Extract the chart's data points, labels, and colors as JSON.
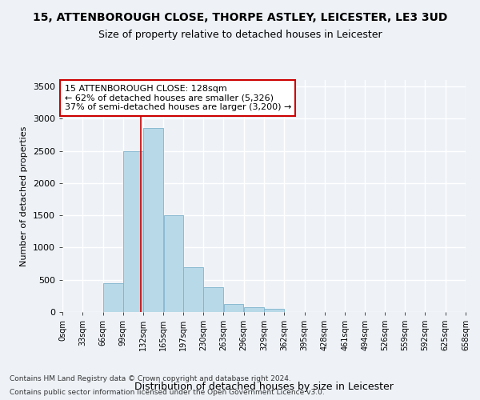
{
  "title_line1": "15, ATTENBOROUGH CLOSE, THORPE ASTLEY, LEICESTER, LE3 3UD",
  "title_line2": "Size of property relative to detached houses in Leicester",
  "xlabel": "Distribution of detached houses by size in Leicester",
  "ylabel": "Number of detached properties",
  "bin_edges": [
    0,
    33,
    66,
    99,
    132,
    165,
    197,
    230,
    263,
    296,
    329,
    362,
    395,
    428,
    461,
    494,
    526,
    559,
    592,
    625,
    658
  ],
  "bin_labels": [
    "0sqm",
    "33sqm",
    "66sqm",
    "99sqm",
    "132sqm",
    "165sqm",
    "197sqm",
    "230sqm",
    "263sqm",
    "296sqm",
    "329sqm",
    "362sqm",
    "395sqm",
    "428sqm",
    "461sqm",
    "494sqm",
    "526sqm",
    "559sqm",
    "592sqm",
    "625sqm",
    "658sqm"
  ],
  "bar_heights": [
    0,
    5,
    450,
    2500,
    2850,
    1500,
    700,
    380,
    130,
    80,
    50,
    5,
    5,
    0,
    0,
    0,
    0,
    0,
    0,
    0
  ],
  "bar_color": "#b8d9e8",
  "bar_edge_color": "#7fb3cc",
  "property_value": 128,
  "property_line_color": "#cc0000",
  "annotation_line1": "15 ATTENBOROUGH CLOSE: 128sqm",
  "annotation_line2": "← 62% of detached houses are smaller (5,326)",
  "annotation_line3": "37% of semi-detached houses are larger (3,200) →",
  "annotation_box_color": "#ffffff",
  "annotation_box_edge_color": "#cc0000",
  "ylim": [
    0,
    3600
  ],
  "yticks": [
    0,
    500,
    1000,
    1500,
    2000,
    2500,
    3000,
    3500
  ],
  "background_color": "#eef2f7",
  "plot_bg_color": "#eef2f7",
  "footer_line1": "Contains HM Land Registry data © Crown copyright and database right 2024.",
  "footer_line2": "Contains public sector information licensed under the Open Government Licence v3.0.",
  "grid_color": "#ffffff",
  "title_fontsize": 10,
  "subtitle_fontsize": 9,
  "annotation_fontsize": 8,
  "tick_fontsize": 7,
  "ylabel_fontsize": 8,
  "xlabel_fontsize": 9
}
